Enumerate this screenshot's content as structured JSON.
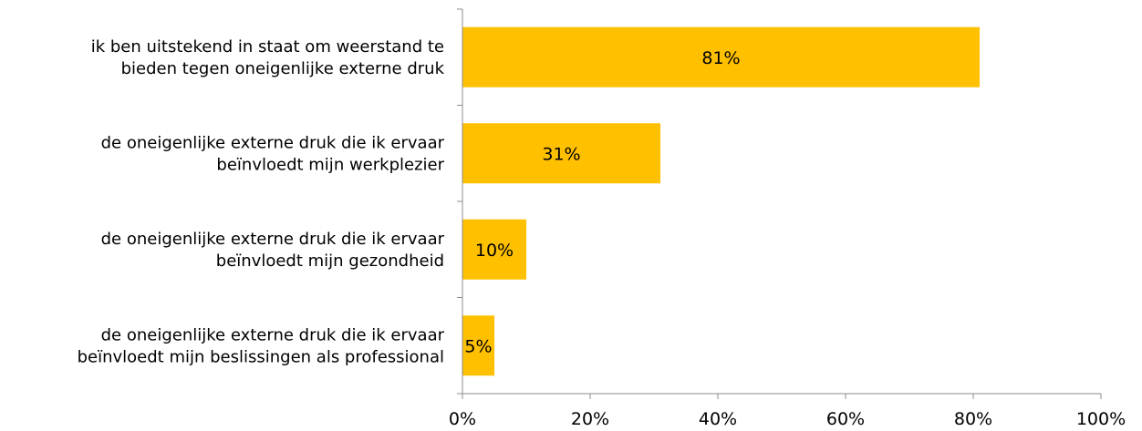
{
  "chart_data": {
    "type": "bar",
    "orientation": "horizontal",
    "categories": [
      [
        "ik ben uitstekend in staat om weerstand te",
        "bieden tegen oneigenlijke externe druk"
      ],
      [
        "de oneigenlijke externe druk die ik ervaar",
        "beïnvloedt mijn werkplezier"
      ],
      [
        "de oneigenlijke externe druk die ik ervaar",
        "beïnvloedt mijn gezondheid"
      ],
      [
        "de oneigenlijke externe druk die ik ervaar",
        "beïnvloedt mijn beslissingen als professional"
      ]
    ],
    "values": [
      81,
      31,
      10,
      5
    ],
    "data_labels": [
      "81%",
      "31%",
      "10%",
      "5%"
    ],
    "xlim": [
      0,
      100
    ],
    "xticks": [
      0,
      20,
      40,
      60,
      80,
      100
    ],
    "xtick_labels": [
      "0%",
      "20%",
      "40%",
      "60%",
      "80%",
      "100%"
    ],
    "bar_color": "#FFC000",
    "grid": false,
    "legend": "none"
  }
}
